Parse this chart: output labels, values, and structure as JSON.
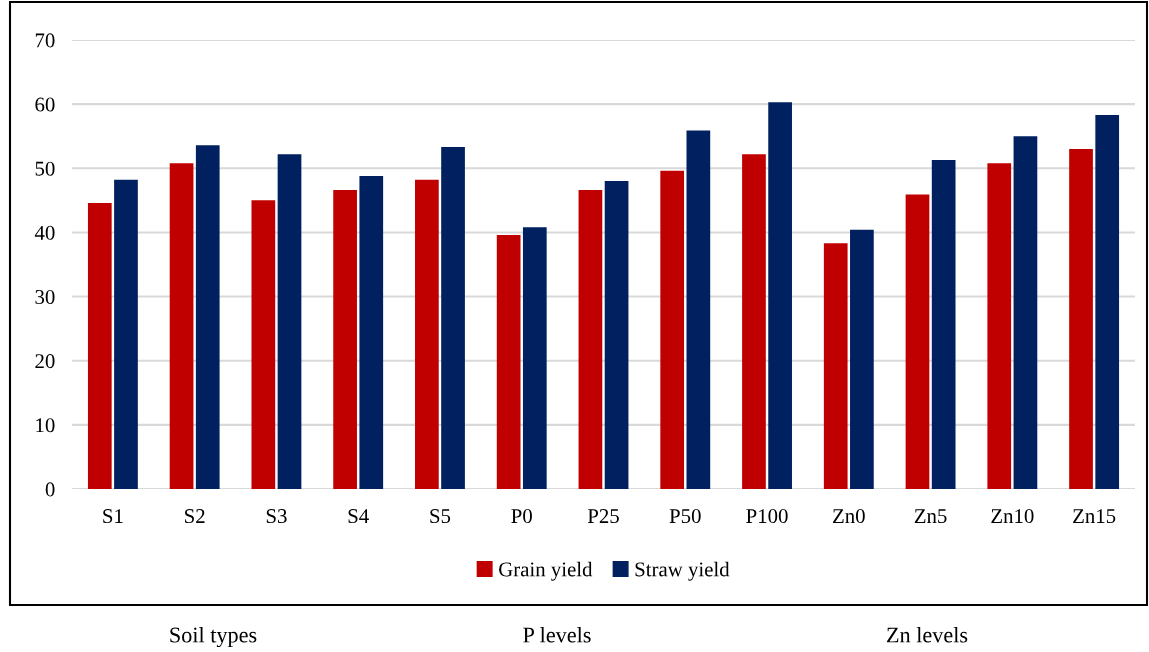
{
  "chart_data": {
    "type": "bar",
    "categories": [
      "S1",
      "S2",
      "S3",
      "S4",
      "S5",
      "P0",
      "P25",
      "P50",
      "P100",
      "Zn0",
      "Zn5",
      "Zn10",
      "Zn15"
    ],
    "series": [
      {
        "name": "Grain yield",
        "color": "#c00000",
        "values": [
          44.6,
          50.8,
          45.0,
          46.6,
          48.2,
          39.6,
          46.6,
          49.6,
          52.2,
          38.3,
          45.9,
          50.8,
          53.0
        ]
      },
      {
        "name": "Straw yield",
        "color": "#002060",
        "values": [
          48.2,
          53.6,
          52.2,
          48.8,
          53.3,
          40.8,
          48.0,
          55.9,
          60.3,
          40.4,
          51.3,
          55.0,
          58.3
        ]
      }
    ],
    "ylim": [
      0,
      70
    ],
    "yticks": [
      0,
      10,
      20,
      30,
      40,
      50,
      60,
      70
    ],
    "grid": "y",
    "legend": "bottom",
    "annotations": [
      "Soil types",
      "P levels",
      "Zn levels"
    ]
  }
}
